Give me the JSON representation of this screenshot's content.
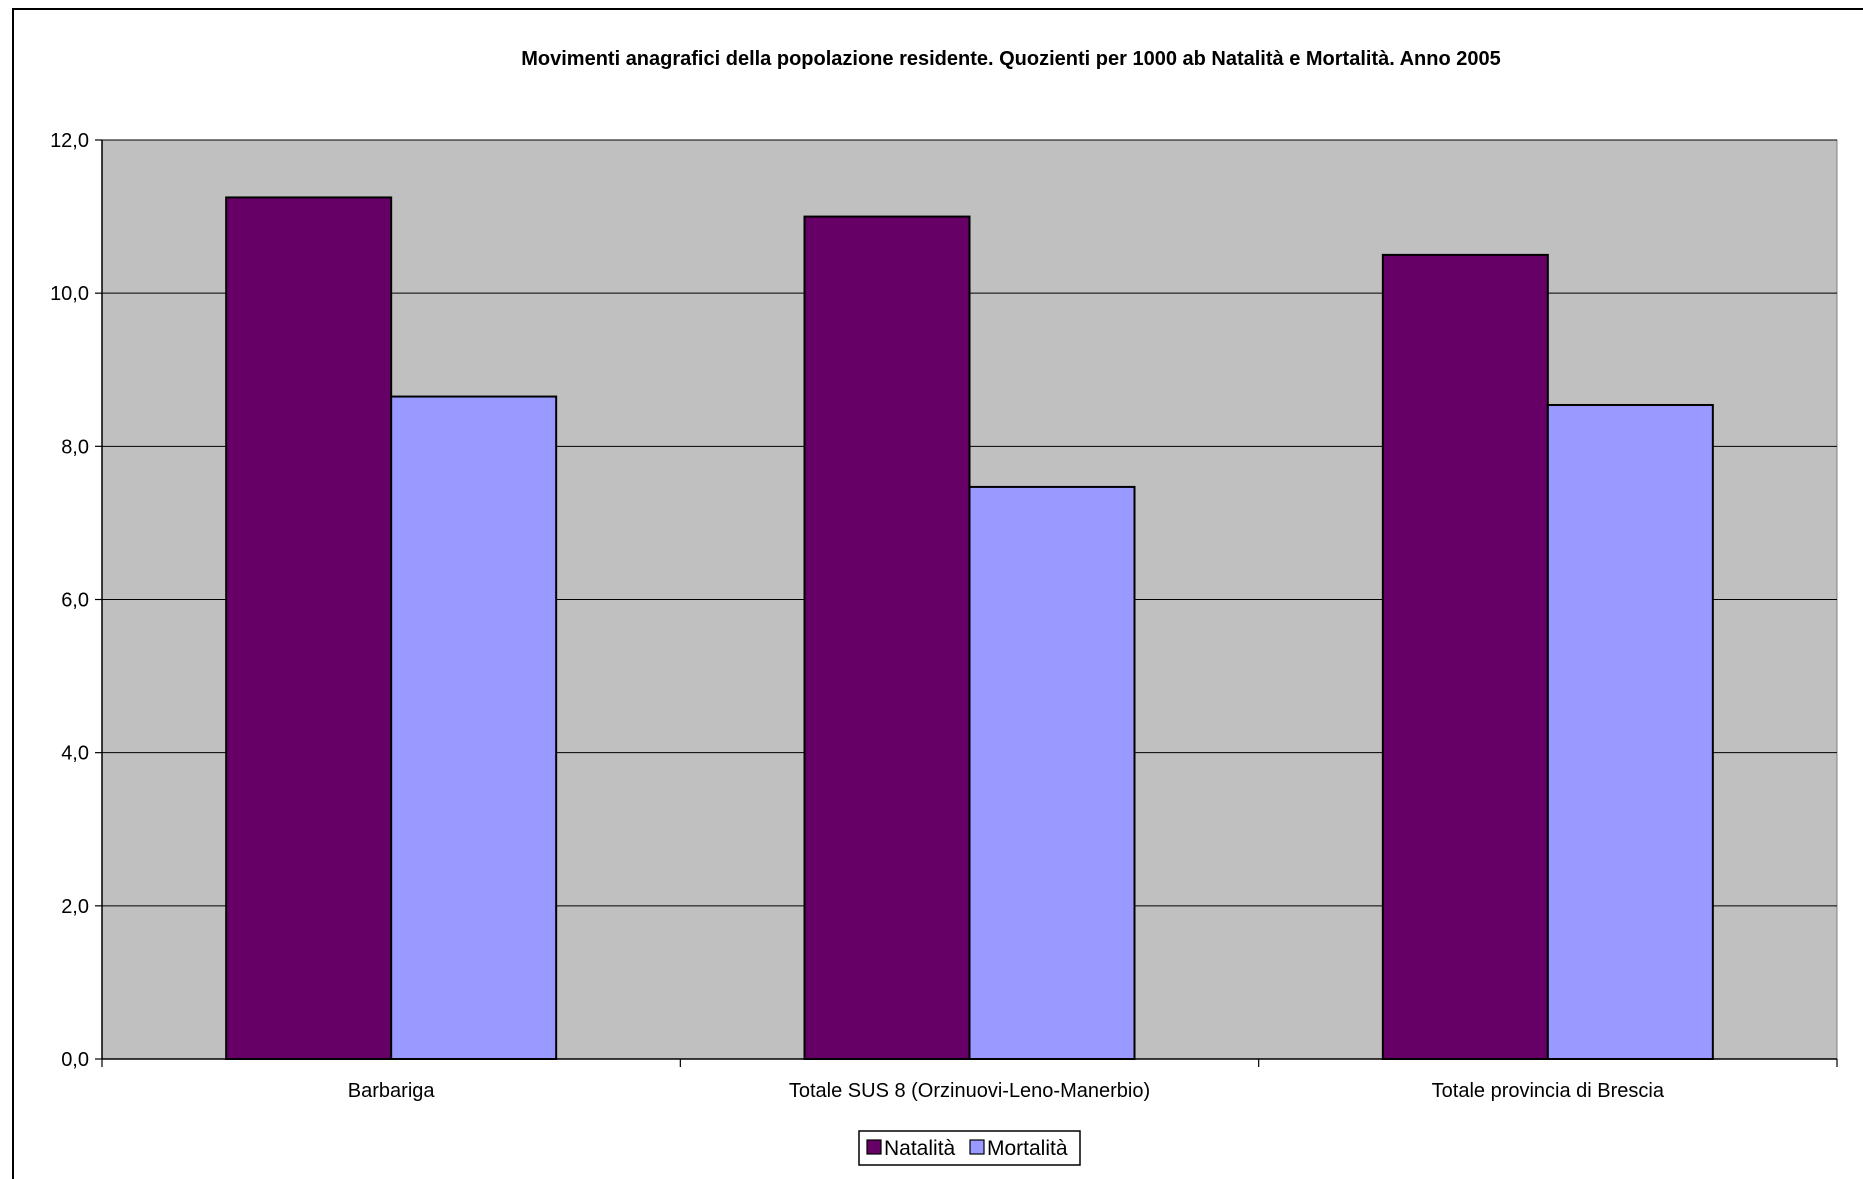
{
  "chart_data": {
    "type": "bar",
    "title": "Movimenti anagrafici della popolazione residente. Quozienti per 1000 ab Natalità e Mortalità. Anno 2005",
    "xlabel": "",
    "ylabel": "",
    "categories": [
      "Barbariga",
      "Totale SUS 8 (Orzinuovi-Leno-Manerbio)",
      "Totale provincia di Brescia"
    ],
    "series": [
      {
        "name": "Natalità",
        "color": "#660066",
        "values": [
          11.25,
          11.0,
          10.5
        ]
      },
      {
        "name": "Mortalità",
        "color": "#9999ff",
        "values": [
          8.65,
          7.47,
          8.54
        ]
      }
    ],
    "ylim": [
      0,
      12
    ],
    "yticks": [
      0,
      2,
      4,
      6,
      8,
      10,
      12
    ],
    "ytick_labels": [
      "0,0",
      "2,0",
      "4,0",
      "6,0",
      "8,0",
      "10,0",
      "12,0"
    ],
    "grid": true,
    "plot_background": "#c0c0c0",
    "legend": {
      "position": "bottom",
      "entries": [
        "Natalità",
        "Mortalità"
      ]
    }
  }
}
